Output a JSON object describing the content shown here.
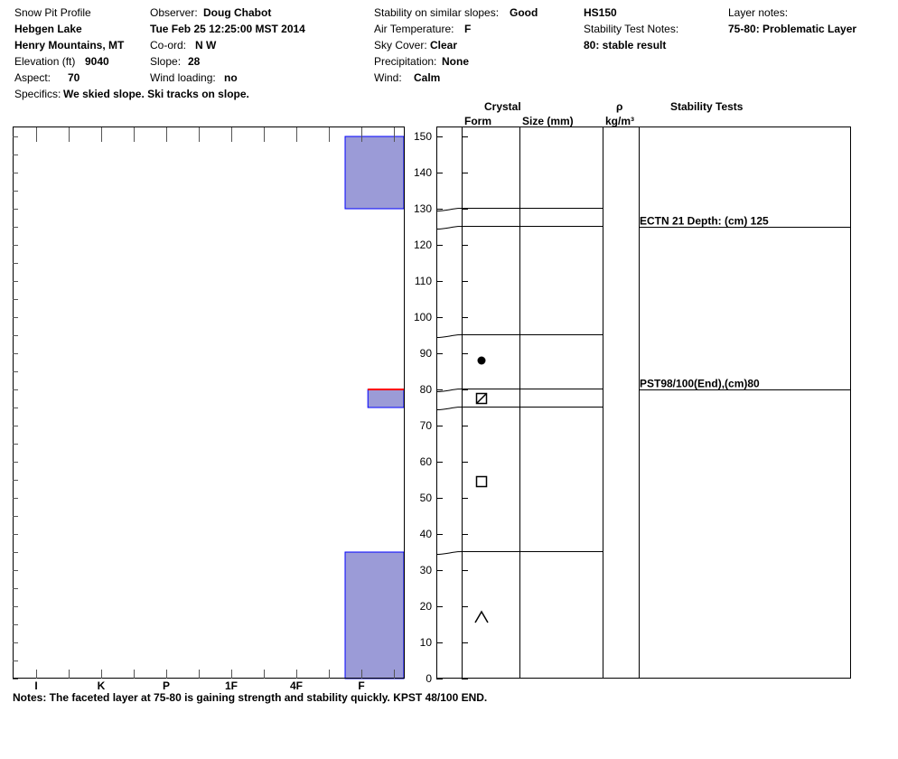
{
  "header": {
    "col1": {
      "title": "Snow Pit Profile",
      "location": "Hebgen Lake",
      "range": "Henry Mountains, MT",
      "elevation_label": "Elevation (ft)",
      "elevation_value": "9040",
      "aspect_label": "Aspect:",
      "aspect_value": "70",
      "specifics_label": "Specifics:",
      "specifics_value": "We skied slope. Ski tracks on slope."
    },
    "col2": {
      "observer_label": "Observer:",
      "observer_value": "Doug Chabot",
      "datetime": "Tue Feb 25 12:25:00 MST 2014",
      "coord_label": "Co-ord:",
      "coord_value": "N  W",
      "slope_label": "Slope:",
      "slope_value": "28",
      "wind_loading_label": "Wind loading:",
      "wind_loading_value": "no"
    },
    "col3": {
      "stability_label": "Stability on similar slopes:",
      "stability_value": "Good",
      "air_temp_label": "Air Temperature:",
      "air_temp_value": "F",
      "sky_label": "Sky Cover:",
      "sky_value": "Clear",
      "precip_label": "Precipitation:",
      "precip_value": "None",
      "wind_label": "Wind:",
      "wind_value": "Calm"
    },
    "col4": {
      "hs": "HS150",
      "stn_label": "Stability Test Notes:",
      "stn_value": "80: stable result"
    },
    "col5": {
      "layer_notes_label": "Layer notes:",
      "layer_notes_value": "75-80: Problematic Layer"
    }
  },
  "table_headers": {
    "crystal": "Crystal",
    "form": "Form",
    "size": "Size (mm)",
    "rho": "ρ",
    "density_unit": "kg/m³",
    "stability_tests": "Stability Tests"
  },
  "notes": "Notes:  The faceted layer at 75-80 is gaining strength and stability quickly.  KPST 48/100 END.",
  "colors": {
    "layer_fill": "#9b9bd7",
    "layer_edge": "#0000ff",
    "weak_layer": "#ff0000"
  },
  "chart_data": {
    "type": "bar",
    "description": "Snow pit hand-hardness profile",
    "y_axis": {
      "range": [
        0,
        150
      ],
      "ticks": [
        "0",
        "10",
        "20",
        "30",
        "40",
        "50",
        "60",
        "70",
        "80",
        "90",
        "100",
        "110",
        "120",
        "130",
        "140",
        "150"
      ]
    },
    "hardness_scale": [
      "I",
      "K",
      "P",
      "1F",
      "4F",
      "F"
    ],
    "layers": [
      {
        "bottom": 130,
        "top": 150,
        "hardness_index": 4.75
      },
      {
        "bottom": 125,
        "top": 130,
        "hardness_index": 5.75
      },
      {
        "bottom": 95,
        "top": 125,
        "hardness_index": 6.1
      },
      {
        "bottom": 80,
        "top": 95,
        "hardness_index": 5.75
      },
      {
        "bottom": 75,
        "top": 80,
        "hardness_index": 5.1
      },
      {
        "bottom": 35,
        "top": 75,
        "hardness_index": 5.75
      },
      {
        "bottom": 0,
        "top": 35,
        "hardness_index": 4.75
      }
    ],
    "weak_layer_height": 80,
    "layer_boundaries": [
      130,
      125,
      95,
      80,
      75,
      35
    ],
    "crystal_forms": [
      {
        "height": 88,
        "symbol": "rounded-grain"
      },
      {
        "height": 77.5,
        "symbol": "mixed-form"
      },
      {
        "height": 54.5,
        "symbol": "faceted-crystal"
      },
      {
        "height": 17,
        "symbol": "depth-hoar"
      }
    ],
    "stability_tests": [
      {
        "height": 125,
        "text": "ECTN 21   Depth: (cm) 125"
      },
      {
        "height": 80,
        "text": "PST98/100(End),(cm)80"
      }
    ]
  }
}
